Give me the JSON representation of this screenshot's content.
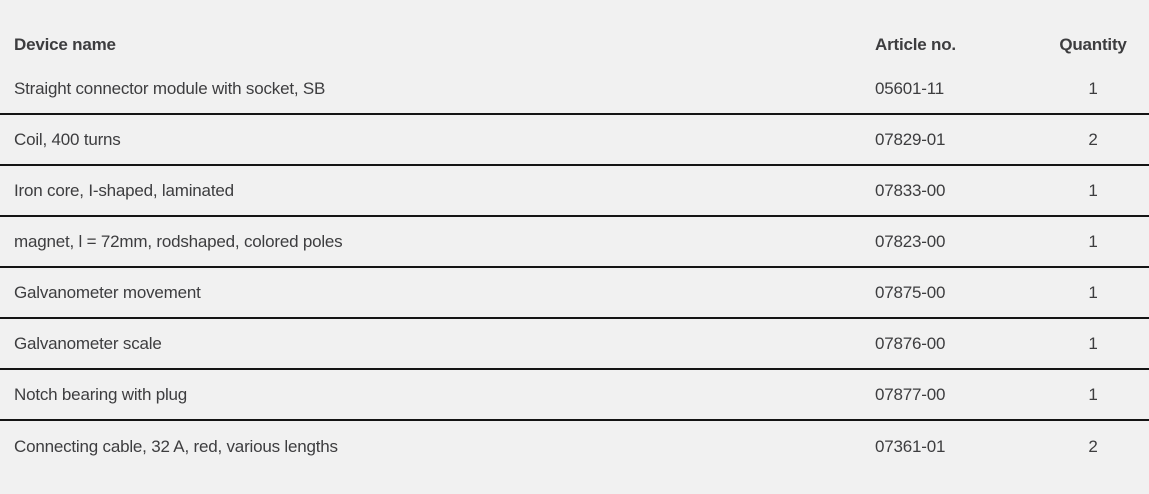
{
  "table": {
    "columns": {
      "device_label": "Device name",
      "article_label": "Article no.",
      "quantity_label": "Quantity"
    },
    "rows": [
      {
        "device": "Straight connector module with socket, SB",
        "article": "05601-11",
        "qty": "1"
      },
      {
        "device": "Coil, 400 turns",
        "article": "07829-01",
        "qty": "2"
      },
      {
        "device": "Iron core, I-shaped, laminated",
        "article": "07833-00",
        "qty": "1"
      },
      {
        "device": "magnet, l = 72mm, rodshaped, colored poles",
        "article": "07823-00",
        "qty": "1"
      },
      {
        "device": "Galvanometer movement",
        "article": "07875-00",
        "qty": "1"
      },
      {
        "device": "Galvanometer scale",
        "article": "07876-00",
        "qty": "1"
      },
      {
        "device": "Notch bearing with plug",
        "article": "07877-00",
        "qty": "1"
      },
      {
        "device": "Connecting cable, 32 A, red, various lengths",
        "article": "07361-01",
        "qty": "2"
      }
    ],
    "colors": {
      "background": "#f1f1f1",
      "text": "#3d3d3f",
      "separator": "#141414"
    }
  }
}
